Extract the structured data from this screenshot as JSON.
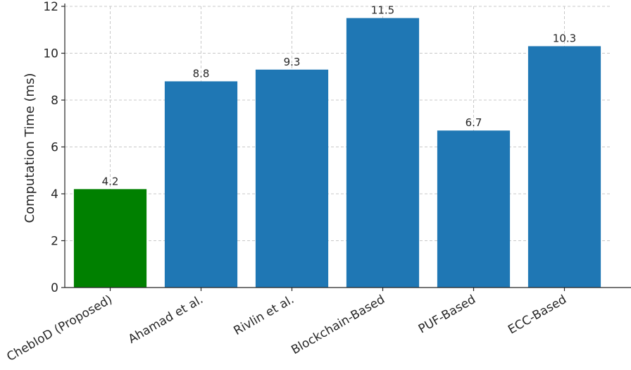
{
  "chart_data": {
    "type": "bar",
    "title": "",
    "xlabel": "",
    "ylabel": "Computation Time (ms)",
    "categories": [
      "ChebIoD (Proposed)",
      "Ahamad et al.",
      "Rivlin et al.",
      "Blockchain-Based",
      "PUF-Based",
      "ECC-Based"
    ],
    "values": [
      4.2,
      8.8,
      9.3,
      11.5,
      6.7,
      10.3
    ],
    "data_labels": [
      "4.2",
      "8.8",
      "9.3",
      "11.5",
      "6.7",
      "10.3"
    ],
    "bar_colors": [
      "#008000",
      "#1f77b4",
      "#1f77b4",
      "#1f77b4",
      "#1f77b4",
      "#1f77b4"
    ],
    "ylim": [
      0,
      12
    ],
    "yticks": [
      0,
      2,
      4,
      6,
      8,
      10,
      12
    ],
    "grid": true,
    "legend": "none"
  }
}
